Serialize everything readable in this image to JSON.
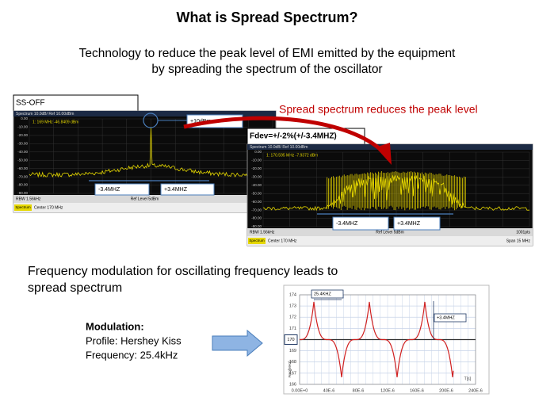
{
  "title": "What is Spread Spectrum?",
  "subtitle": [
    "Technology to reduce the peak level of EMI emitted by the equipment",
    "by spreading the spectrum of the oscillator"
  ],
  "annotation": "Spread spectrum reduces the peak level",
  "spectrum_yticks": [
    "0.00",
    "-10.00",
    "-20.00",
    "-30.00",
    "-40.00",
    "-50.00",
    "-60.00",
    "-70.00",
    "-80.00",
    "-90.00"
  ],
  "ss_off": {
    "label": "SS-OFF",
    "header": "Spectrum 10.0dB/ Ref 10.00dBm",
    "readout": "1:  169 MHz   -46.8409 dBm",
    "marker": "+10dBm",
    "left": "-3.4MHZ",
    "right": "+3.4MHZ",
    "rbw": "RBW 1.56kHz",
    "ref": "Ref Level 5dBm",
    "tab": "Spectrum",
    "center": "Center 170 MHz"
  },
  "ss_on": {
    "label": "Fdev=+/-2%(+/-3.4MHZ)",
    "header": "Spectrum 10.0dB/ Ref 10.00dBm",
    "readout": "1:  170.595 MHz   -7.9372 dBm",
    "left": "-3.4MHZ",
    "right": "+3.4MHZ",
    "rbw": "RBW 1.56kHz",
    "ref": "Ref Level 5dBm",
    "points": "1001pts",
    "tab": "Spectrum",
    "center": "Center 170 MHz",
    "span": "Span 15 MHz"
  },
  "section2": [
    "Frequency modulation for oscillating frequency leads to",
    "spread spectrum"
  ],
  "modulation": {
    "heading": "Modulation:",
    "profile": "Profile: Hershey Kiss",
    "frequency": "Frequency: 25.4kHz"
  },
  "freq_chart": {
    "y_label": "Freq[MHz]",
    "x_label": "T[s]",
    "yticks": [
      166,
      167,
      168,
      169,
      170,
      171,
      172,
      173,
      174
    ],
    "ylim": [
      166,
      174
    ],
    "center_tick": 170,
    "xticks": [
      "0.00E+0",
      "40E-6",
      "80E-6",
      "120E-6",
      "160E-6",
      "200E-6",
      "240E-6"
    ],
    "period": "25.4KHZ",
    "deviation": "+3.4MHZ"
  }
}
